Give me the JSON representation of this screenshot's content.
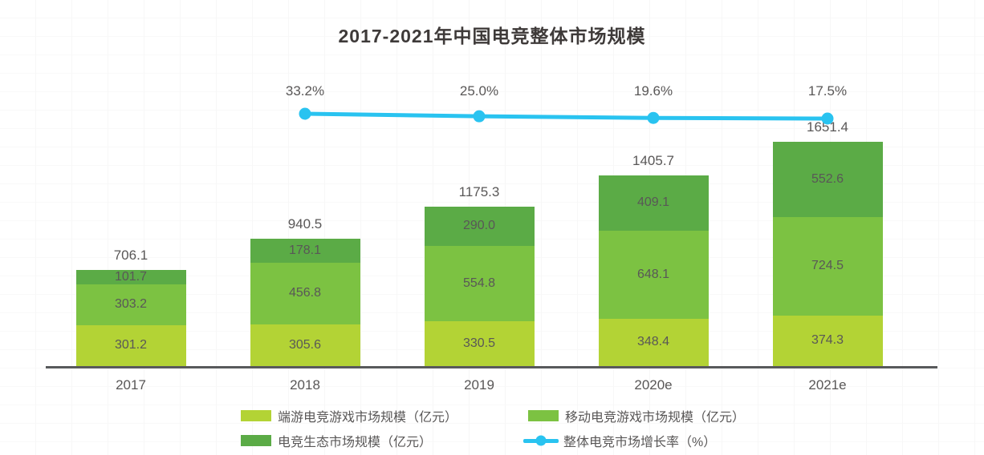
{
  "title": "2017-2021年中国电竞整体市场规模",
  "chart_data": {
    "type": "bar",
    "subtype": "stacked-bars-with-line-overlay",
    "categories": [
      "2017",
      "2018",
      "2019",
      "2020e",
      "2021e"
    ],
    "series": [
      {
        "name": "端游电竞游戏市场规模（亿元）",
        "color": "#b3d335",
        "values": [
          301.2,
          305.6,
          330.5,
          348.4,
          374.3
        ],
        "labels": [
          "301.2",
          "305.6",
          "330.5",
          "348.4",
          "374.3"
        ]
      },
      {
        "name": "移动电竞游戏市场规模（亿元）",
        "color": "#7cc242",
        "values": [
          303.2,
          456.8,
          554.8,
          648.1,
          724.5
        ],
        "labels": [
          "303.2",
          "456.8",
          "554.8",
          "648.1",
          "724.5"
        ]
      },
      {
        "name": "电竞生态市场规模（亿元）",
        "color": "#5bab46",
        "values": [
          101.7,
          178.1,
          290.0,
          409.1,
          552.6
        ],
        "labels": [
          "101.7",
          "178.1",
          "290.0",
          "409.1",
          "552.6"
        ]
      }
    ],
    "totals": [
      706.1,
      940.5,
      1175.3,
      1405.7,
      1651.4
    ],
    "total_labels": [
      "706.1",
      "940.5",
      "1175.3",
      "1405.7",
      "1651.4"
    ],
    "line_series": {
      "name": "整体电竞市场增长率（%）",
      "color": "#29c3f0",
      "categories": [
        "2018",
        "2019",
        "2020e",
        "2021e"
      ],
      "values": [
        33.2,
        25.0,
        19.6,
        17.5
      ],
      "labels": [
        "33.2%",
        "25.0%",
        "19.6%",
        "17.5%"
      ]
    },
    "xlabel": "",
    "ylabel": "",
    "ylim": [
      0,
      1700
    ],
    "grid": "faint",
    "legend_position": "bottom",
    "colors": {
      "axis": "#58595b",
      "text": "#595757",
      "title": "#3e3a39"
    }
  }
}
